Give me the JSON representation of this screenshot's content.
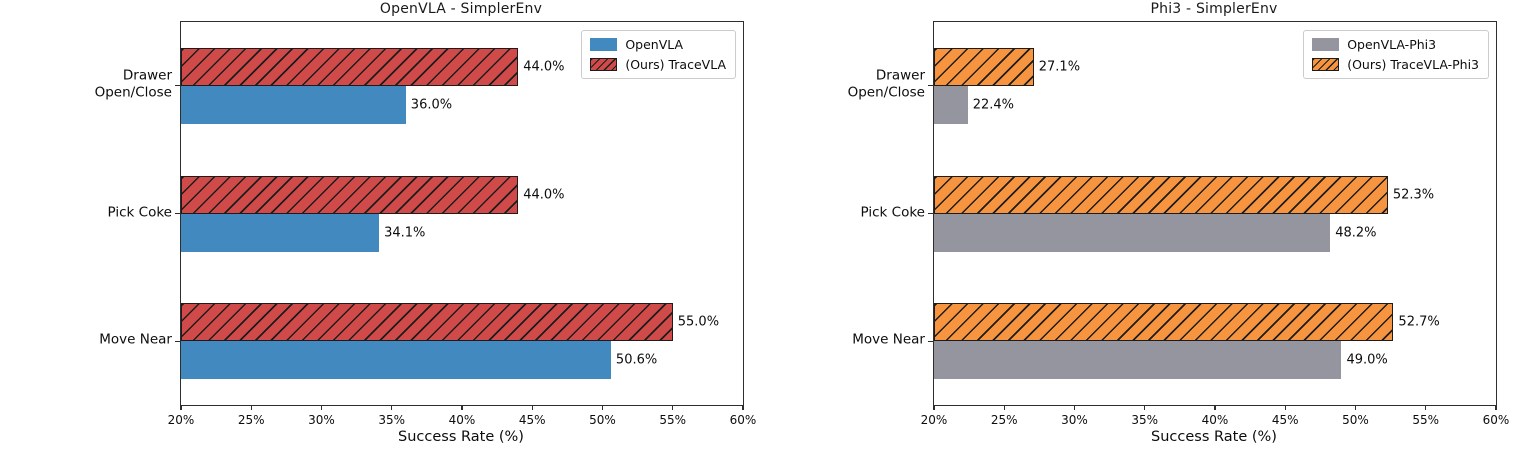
{
  "figure": {
    "background": "#ffffff"
  },
  "chart_data": [
    {
      "type": "bar",
      "orientation": "horizontal",
      "title": "OpenVLA - SimplerEnv",
      "xlabel": "Success Rate (%)",
      "xlim": [
        20,
        60
      ],
      "xtick_labels": [
        "20%",
        "25%",
        "30%",
        "35%",
        "40%",
        "45%",
        "50%",
        "55%",
        "60%"
      ],
      "grid": false,
      "legend_position": "upper-right",
      "categories": [
        "Drawer Open/Close",
        "Pick Coke",
        "Move Near"
      ],
      "category_label_lines": [
        [
          "Drawer",
          "Open/Close"
        ],
        [
          "Pick Coke"
        ],
        [
          "Move Near"
        ]
      ],
      "series": [
        {
          "name": "OpenVLA",
          "color": "#4189BF",
          "hatch": false,
          "values": [
            36.0,
            34.1,
            50.6
          ],
          "value_labels": [
            "36.0%",
            "34.1%",
            "50.6%"
          ]
        },
        {
          "name": "(Ours) TraceVLA",
          "color": "#D04A4A",
          "hatch": true,
          "values": [
            44.0,
            44.0,
            55.0
          ],
          "value_labels": [
            "44.0%",
            "44.0%",
            "55.0%"
          ]
        }
      ]
    },
    {
      "type": "bar",
      "orientation": "horizontal",
      "title": "Phi3 - SimplerEnv",
      "xlabel": "Success Rate (%)",
      "xlim": [
        20,
        60
      ],
      "xtick_labels": [
        "20%",
        "25%",
        "30%",
        "35%",
        "40%",
        "45%",
        "50%",
        "55%",
        "60%"
      ],
      "grid": false,
      "legend_position": "upper-right",
      "categories": [
        "Drawer Open/Close",
        "Pick Coke",
        "Move Near"
      ],
      "category_label_lines": [
        [
          "Drawer",
          "Open/Close"
        ],
        [
          "Pick Coke"
        ],
        [
          "Move Near"
        ]
      ],
      "series": [
        {
          "name": "OpenVLA-Phi3",
          "color": "#95959F",
          "hatch": false,
          "values": [
            22.4,
            48.2,
            49.0
          ],
          "value_labels": [
            "22.4%",
            "48.2%",
            "49.0%"
          ]
        },
        {
          "name": "(Ours) TraceVLA-Phi3",
          "color": "#F69440",
          "hatch": true,
          "values": [
            27.1,
            52.3,
            52.7
          ],
          "value_labels": [
            "27.1%",
            "52.3%",
            "52.7%"
          ]
        }
      ]
    }
  ]
}
